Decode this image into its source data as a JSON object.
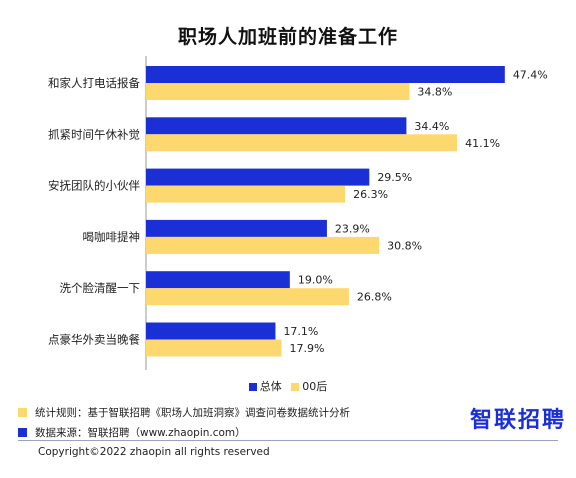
{
  "title": "职场人加班前的准备工作",
  "colors": {
    "total": "#1b2fd6",
    "gen00": "#fcd86e"
  },
  "legend": {
    "total": "总体",
    "gen00": "00后"
  },
  "notes": {
    "stats_rule": "统计规则：基于智联招聘《职场人加班洞察》调查问卷数据统计分析",
    "data_source": "数据来源：智联招聘（www.zhaopin.com）"
  },
  "logo": "智联招聘",
  "copyright": "Copyright©2022 zhaopin all rights reserved",
  "chart_data": {
    "type": "bar",
    "orientation": "horizontal",
    "title": "职场人加班前的准备工作",
    "categories": [
      "和家人打电话报备",
      "抓紧时间午休补觉",
      "安抚团队的小伙伴",
      "喝咖啡提神",
      "洗个脸清醒一下",
      "点豪华外卖当晚餐"
    ],
    "series": [
      {
        "name": "总体",
        "values": [
          47.4,
          34.4,
          29.5,
          23.9,
          19.0,
          17.1
        ],
        "labels": [
          "47.4%",
          "34.4%",
          "29.5%",
          "23.9%",
          "19.0%",
          "17.1%"
        ]
      },
      {
        "name": "00后",
        "values": [
          34.8,
          41.1,
          26.3,
          30.8,
          26.8,
          17.9
        ],
        "labels": [
          "34.8%",
          "41.1%",
          "26.3%",
          "30.8%",
          "26.8%",
          "17.9%"
        ]
      }
    ],
    "unit": "%",
    "legend_position": "bottom",
    "grid": false
  }
}
